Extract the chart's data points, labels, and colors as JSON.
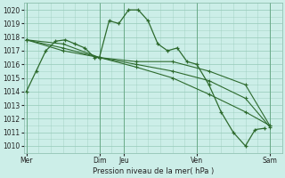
{
  "bg_color": "#cceee8",
  "grid_color": "#99ccbb",
  "line_color": "#2d6a2d",
  "xlabel": "Pression niveau de la mer( hPa )",
  "ylim": [
    1009.5,
    1020.5
  ],
  "yticks": [
    1010,
    1011,
    1012,
    1013,
    1014,
    1015,
    1016,
    1017,
    1018,
    1019,
    1020
  ],
  "xtick_labels": [
    "Mer",
    "Dim",
    "Jeu",
    "Ven",
    "Sam"
  ],
  "xtick_positions": [
    0,
    3,
    4,
    7,
    10
  ],
  "xlim": [
    -0.1,
    10.5
  ],
  "series0": {
    "x": [
      0,
      0.4,
      0.8,
      1.2,
      1.6,
      2.0,
      2.4,
      2.8,
      3.0,
      3.4,
      3.8,
      4.2,
      4.6,
      5.0,
      5.4,
      5.8,
      6.2,
      6.6,
      7.0,
      7.5,
      8.0,
      8.5,
      9.0,
      9.4,
      9.8
    ],
    "y": [
      1014.0,
      1015.5,
      1017.0,
      1017.7,
      1017.8,
      1017.5,
      1017.2,
      1016.5,
      1016.5,
      1019.2,
      1019.0,
      1020.0,
      1020.0,
      1019.2,
      1017.5,
      1017.0,
      1017.2,
      1016.2,
      1016.0,
      1014.5,
      1012.5,
      1011.0,
      1010.0,
      1011.2,
      1011.3
    ]
  },
  "series1": {
    "x": [
      0,
      1.5,
      3.0,
      4.5,
      6.0,
      7.5,
      9.0,
      10.0
    ],
    "y": [
      1017.8,
      1017.5,
      1016.5,
      1016.2,
      1016.2,
      1015.5,
      1014.5,
      1011.5
    ]
  },
  "series2": {
    "x": [
      0,
      1.5,
      3.0,
      4.5,
      6.0,
      7.5,
      9.0,
      10.0
    ],
    "y": [
      1017.8,
      1017.2,
      1016.5,
      1016.0,
      1015.5,
      1014.8,
      1013.5,
      1011.4
    ]
  },
  "series3": {
    "x": [
      0,
      1.5,
      3.0,
      4.5,
      6.0,
      7.5,
      9.0,
      10.0
    ],
    "y": [
      1017.8,
      1017.0,
      1016.5,
      1015.8,
      1015.0,
      1013.8,
      1012.5,
      1011.5
    ]
  }
}
